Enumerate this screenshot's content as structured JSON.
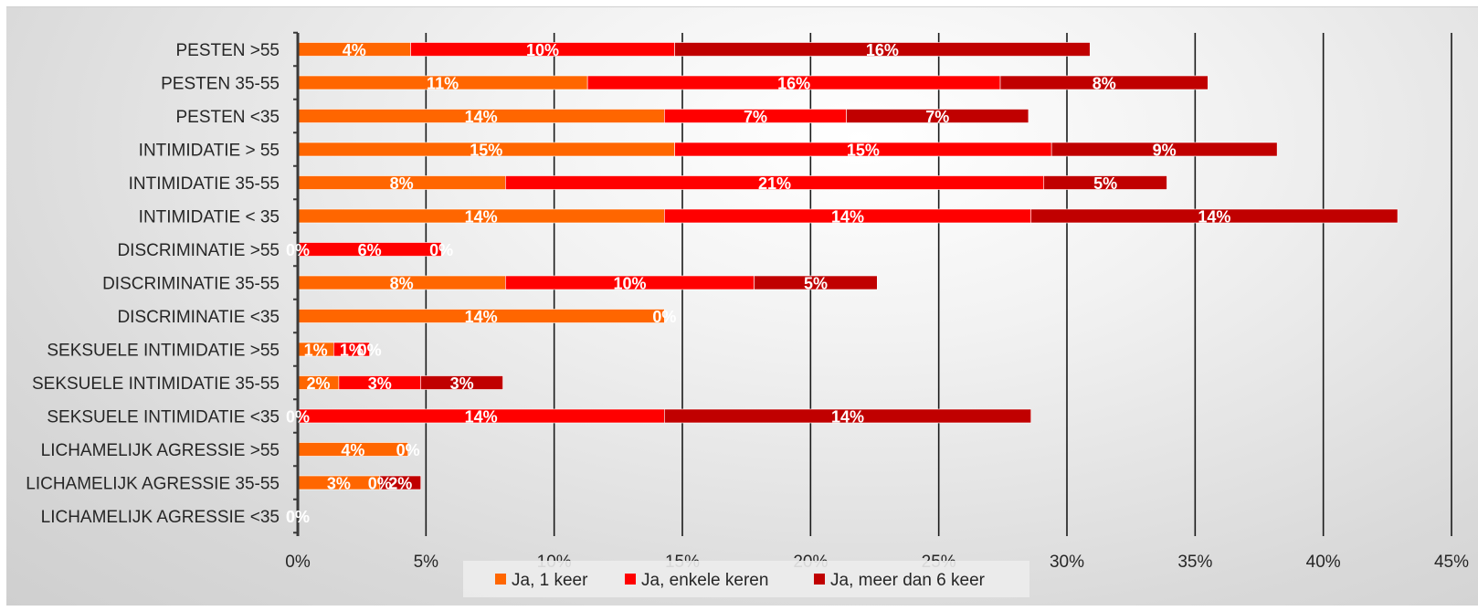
{
  "chart_data": {
    "type": "bar",
    "orientation": "horizontal",
    "stacked": true,
    "categories": [
      "PESTEN >55",
      "PESTEN 35-55",
      "PESTEN <35",
      "INTIMIDATIE > 55",
      "INTIMIDATIE 35-55",
      "INTIMIDATIE < 35",
      "DISCRIMINATIE >55",
      "DISCRIMINATIE 35-55",
      "DISCRIMINATIE <35",
      "SEKSUELE INTIMIDATIE >55",
      "SEKSUELE INTIMIDATIE 35-55",
      "SEKSUELE INTIMIDATIE <35",
      "LICHAMELIJK AGRESSIE >55",
      "LICHAMELIJK AGRESSIE 35-55",
      "LICHAMELIJK AGRESSIE <35"
    ],
    "series": [
      {
        "name": "Ja, 1 keer",
        "color": "#ff6600",
        "values": [
          4.4,
          11.3,
          14.3,
          14.7,
          8.1,
          14.3,
          0,
          8.1,
          14.3,
          1.4,
          1.6,
          0,
          4.3,
          3.2,
          0
        ],
        "labels": [
          "4%",
          "11%",
          "14%",
          "15%",
          "8%",
          "14%",
          "0%",
          "8%",
          "14%",
          "1%",
          "2%",
          "0%",
          "4%",
          "3%",
          "0%"
        ]
      },
      {
        "name": "Ja, enkele keren",
        "color": "#ff0000",
        "values": [
          10.3,
          16.1,
          7.1,
          14.7,
          21.0,
          14.3,
          5.6,
          9.7,
          0,
          1.4,
          3.2,
          14.3,
          0,
          0,
          0
        ],
        "labels": [
          "10%",
          "16%",
          "7%",
          "15%",
          "21%",
          "14%",
          "6%",
          "10%",
          "0%",
          "1%",
          "3%",
          "14%",
          "0%",
          "0%",
          "0%"
        ]
      },
      {
        "name": "Ja, meer dan 6 keer",
        "color": "#c00000",
        "values": [
          16.2,
          8.1,
          7.1,
          8.8,
          4.8,
          14.3,
          0,
          4.8,
          0,
          0,
          3.2,
          14.3,
          0,
          1.6,
          0
        ],
        "labels": [
          "16%",
          "8%",
          "7%",
          "9%",
          "5%",
          "14%",
          "0%",
          "5%",
          "",
          "0%",
          "3%",
          "14%",
          "",
          "2%",
          ""
        ]
      }
    ],
    "x_ticks": [
      "0%",
      "5%",
      "10%",
      "15%",
      "20%",
      "25%",
      "30%",
      "35%",
      "40%",
      "45%"
    ],
    "xlim": [
      0,
      45
    ],
    "grid": true,
    "legend_position": "bottom"
  }
}
